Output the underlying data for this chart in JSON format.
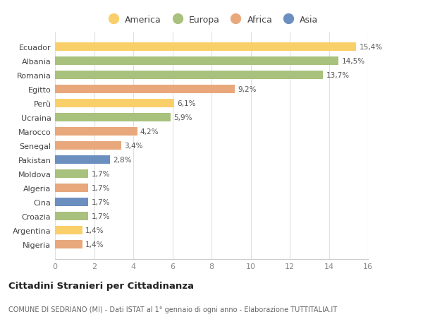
{
  "categories": [
    "Nigeria",
    "Argentina",
    "Croazia",
    "Cina",
    "Algeria",
    "Moldova",
    "Pakistan",
    "Senegal",
    "Marocco",
    "Ucraina",
    "Perù",
    "Egitto",
    "Romania",
    "Albania",
    "Ecuador"
  ],
  "values": [
    1.4,
    1.4,
    1.7,
    1.7,
    1.7,
    1.7,
    2.8,
    3.4,
    4.2,
    5.9,
    6.1,
    9.2,
    13.7,
    14.5,
    15.4
  ],
  "continents": [
    "Africa",
    "America",
    "Europa",
    "Asia",
    "Africa",
    "Europa",
    "Asia",
    "Africa",
    "Africa",
    "Europa",
    "America",
    "Africa",
    "Europa",
    "Europa",
    "America"
  ],
  "colors": {
    "America": "#F9CF6A",
    "Europa": "#A8C17C",
    "Africa": "#E8A87C",
    "Asia": "#6B8FBF"
  },
  "xlim": [
    0,
    16
  ],
  "xticks": [
    0,
    2,
    4,
    6,
    8,
    10,
    12,
    14,
    16
  ],
  "title": "Cittadini Stranieri per Cittadinanza",
  "subtitle": "COMUNE DI SEDRIANO (MI) - Dati ISTAT al 1° gennaio di ogni anno - Elaborazione TUTTITALIA.IT",
  "background_color": "#ffffff",
  "grid_color": "#e0e0e0",
  "legend_order": [
    "America",
    "Europa",
    "Africa",
    "Asia"
  ]
}
